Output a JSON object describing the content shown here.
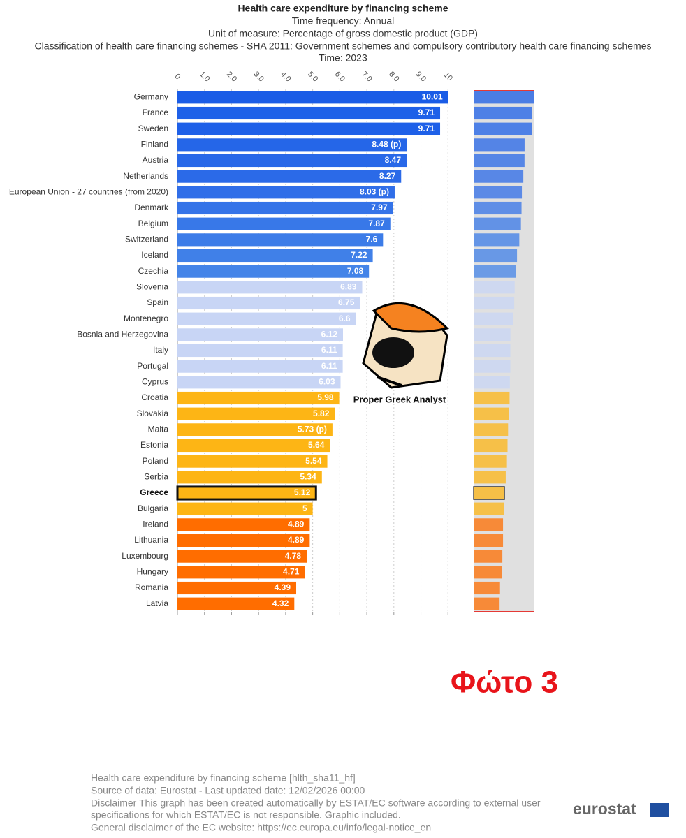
{
  "chart_data": {
    "type": "bar",
    "orientation": "horizontal",
    "title": "Health care expenditure by financing scheme",
    "subtitles": [
      "Time frequency:  Annual",
      "Unit of measure:  Percentage of gross domestic product (GDP)",
      "Classification of health care financing schemes - SHA 2011:  Government schemes and compulsory contributory health care financing schemes",
      "Time:  2023"
    ],
    "categories": [
      "Germany",
      "France",
      "Sweden",
      "Finland",
      "Austria",
      "Netherlands",
      "European Union - 27 countries (from 2020)",
      "Denmark",
      "Belgium",
      "Switzerland",
      "Iceland",
      "Czechia",
      "Slovenia",
      "Spain",
      "Montenegro",
      "Bosnia and Herzegovina",
      "Italy",
      "Portugal",
      "Cyprus",
      "Croatia",
      "Slovakia",
      "Malta",
      "Estonia",
      "Poland",
      "Serbia",
      "Greece",
      "Bulgaria",
      "Ireland",
      "Lithuania",
      "Luxembourg",
      "Hungary",
      "Romania",
      "Latvia"
    ],
    "values": [
      10.01,
      9.71,
      9.71,
      8.48,
      8.47,
      8.27,
      8.03,
      7.97,
      7.87,
      7.6,
      7.22,
      7.08,
      6.83,
      6.75,
      6.6,
      6.12,
      6.11,
      6.11,
      6.03,
      5.98,
      5.82,
      5.73,
      5.64,
      5.54,
      5.34,
      5.12,
      5,
      4.89,
      4.89,
      4.78,
      4.71,
      4.39,
      4.32
    ],
    "value_labels": [
      "10.01",
      "9.71",
      "9.71",
      "8.48 (p)",
      "8.47",
      "8.27",
      "8.03 (p)",
      "7.97",
      "7.87",
      "7.6",
      "7.22",
      "7.08",
      "6.83",
      "6.75",
      "6.6",
      "6.12",
      "6.11",
      "6.11",
      "6.03",
      "5.98",
      "5.82",
      "5.73 (p)",
      "5.64",
      "5.54",
      "5.34",
      "5.12",
      "5",
      "4.89",
      "4.89",
      "4.78",
      "4.71",
      "4.39",
      "4.32"
    ],
    "colors": [
      "#1a5ce6",
      "#1e60e8",
      "#1e60e8",
      "#2566e8",
      "#2868e8",
      "#2b6ae8",
      "#306ee8",
      "#3473e8",
      "#3878e8",
      "#3c7ce8",
      "#4080e8",
      "#4484e8",
      "#c8d5f5",
      "#c8d5f5",
      "#c8d5f5",
      "#c8d5f5",
      "#c8d5f5",
      "#c8d5f5",
      "#c8d5f5",
      "#fdb515",
      "#fdb515",
      "#fdb515",
      "#fdb515",
      "#fdb515",
      "#fdb515",
      "#fdb515",
      "#fdb515",
      "#ff6d00",
      "#ff6d00",
      "#ff6d00",
      "#ff6d00",
      "#ff6d00",
      "#ff6d00"
    ],
    "highlight": "Greece",
    "xlim": [
      0,
      10.2
    ],
    "xticks": [
      0,
      {
        "value": 1,
        "label": "1.0"
      },
      {
        "value": 2,
        "label": "2.0"
      },
      {
        "value": 3,
        "label": "3.0"
      },
      {
        "value": 4,
        "label": "4.0"
      },
      {
        "value": 5,
        "label": "5.0"
      },
      {
        "value": 6,
        "label": "6.0"
      },
      {
        "value": 7,
        "label": "7.0"
      },
      {
        "value": 8,
        "label": "8.0"
      },
      {
        "value": 9,
        "label": "9.0"
      },
      10
    ],
    "grid": true,
    "watermark": "Proper Greek Analyst",
    "photo_label": "Φώτο 3",
    "footer": [
      "Health care expenditure by financing scheme [hlth_sha11_hf]",
      "Source of data: Eurostat - Last updated date: 12/02/2026 00:00",
      "Disclaimer This graph has been created automatically by ESTAT/EC software according to external user",
      "specifications for which ESTAT/EC is not responsible. Graphic included.",
      "General disclaimer of the EC website: https://ec.europa.eu/info/legal-notice_en"
    ],
    "logo": "eurostat"
  }
}
